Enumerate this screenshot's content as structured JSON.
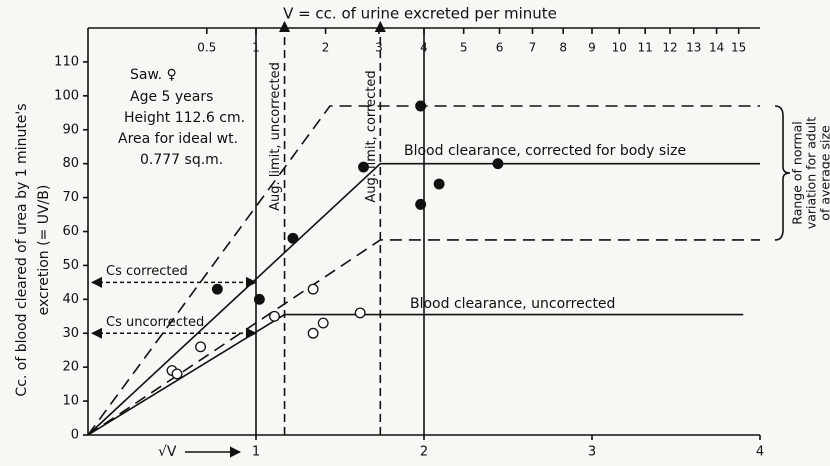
{
  "chart_data": {
    "type": "scatter",
    "title": "V = cc. of urine excreted per minute",
    "xlabel": "√V",
    "ylabel": [
      "Cc. of blood cleared of urea by 1 minute's",
      "excretion (= UV/B)"
    ],
    "xlim": [
      0,
      4
    ],
    "xticks": [
      1,
      2,
      3,
      4
    ],
    "x2scale": "sqrt",
    "x2ticks": [
      0.5,
      1,
      2,
      3,
      4,
      5,
      6,
      7,
      8,
      9,
      10,
      11,
      12,
      13,
      14,
      15
    ],
    "ylim": [
      0,
      120
    ],
    "yticks": [
      0,
      10,
      20,
      30,
      40,
      50,
      60,
      70,
      80,
      90,
      100,
      110
    ],
    "series": [
      {
        "marker": "filled",
        "color": "#111111",
        "x": [
          0.77,
          1.02,
          1.22,
          1.64,
          1.98,
          1.98,
          2.09,
          2.44
        ],
        "values": [
          43,
          40,
          58,
          79,
          97,
          68,
          74,
          80
        ]
      },
      {
        "marker": "open",
        "color": "#111111",
        "x": [
          0.5,
          0.53,
          0.67,
          1.11,
          1.34,
          1.34,
          1.4,
          1.62
        ],
        "values": [
          19,
          18,
          26,
          35,
          43,
          30,
          33,
          36
        ]
      }
    ],
    "lines": [
      {
        "style": "solid",
        "x": [
          0,
          1.74,
          4
        ],
        "values": [
          0,
          80,
          80
        ]
      },
      {
        "style": "solid",
        "x": [
          0,
          1.17,
          3.9
        ],
        "values": [
          0,
          35.5,
          35.5
        ]
      },
      {
        "style": "dashed",
        "x": [
          0,
          1.44,
          4
        ],
        "values": [
          0,
          97,
          97
        ]
      },
      {
        "style": "dashed",
        "x": [
          0,
          1.74,
          4
        ],
        "values": [
          0,
          57.5,
          57.5
        ]
      }
    ],
    "vlines": [
      {
        "style": "solid",
        "x": 1
      },
      {
        "style": "solid",
        "x": 2
      },
      {
        "style": "dashed",
        "x": 1.17,
        "label": "Aug. limit, uncorrected"
      },
      {
        "style": "dashed",
        "x": 1.74,
        "label": "Aug. limit, corrected"
      }
    ],
    "annotations": [
      "Saw. ♀",
      "Age 5 years",
      "Height 112.6 cm.",
      "Area for ideal wt.",
      "0.777 sq.m.",
      "Blood clearance, corrected for body size",
      "Blood clearance, uncorrected"
    ],
    "cs_arrows": [
      {
        "label": "Cs corrected",
        "y": 45
      },
      {
        "label": "Cs uncorrected",
        "y": 30
      }
    ],
    "range": {
      "label": [
        "Range of normal",
        "variation for adult",
        "of average size"
      ],
      "y": [
        57.5,
        97
      ]
    }
  }
}
